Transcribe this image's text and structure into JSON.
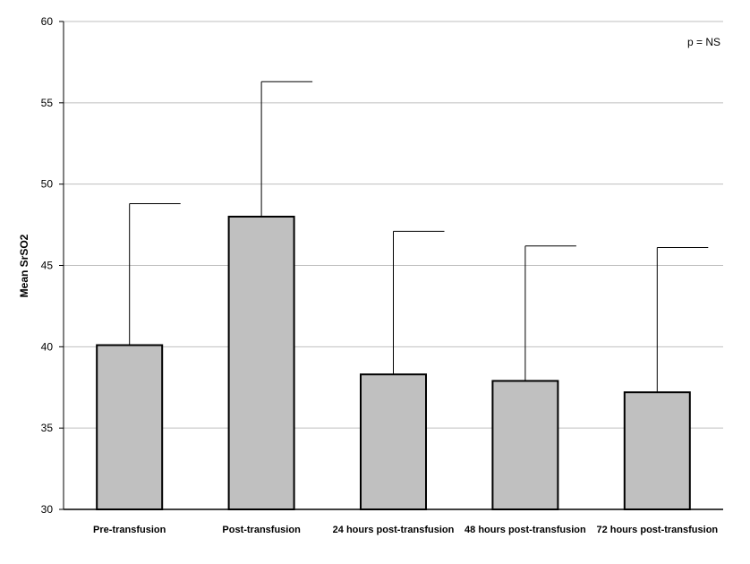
{
  "chart_data": {
    "type": "bar",
    "categories": [
      "Pre-transfusion",
      "Post-transfusion",
      "24 hours post-transfusion",
      "48 hours post-transfusion",
      "72 hours post-transfusion"
    ],
    "values": [
      40.1,
      48.0,
      38.3,
      37.9,
      37.2
    ],
    "error_upper": [
      48.8,
      56.3,
      47.1,
      46.2,
      46.1
    ],
    "ylabel": "Mean SrSO2",
    "xlabel": "",
    "ylim": [
      30,
      60
    ],
    "yticks": [
      30,
      35,
      40,
      45,
      50,
      55,
      60
    ],
    "annotation": "p = NS",
    "grid": true,
    "bar_color": "#c0c0c0",
    "grid_color": "#bfbfbf"
  }
}
